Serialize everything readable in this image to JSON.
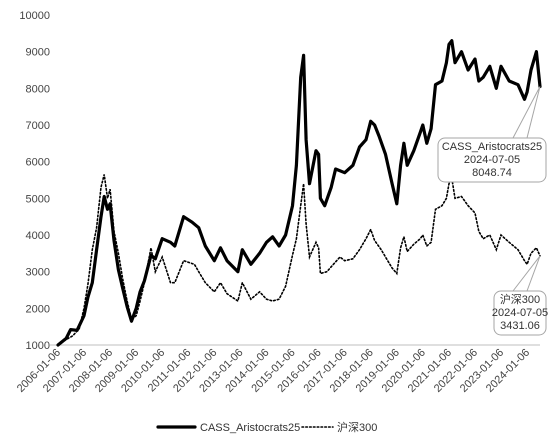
{
  "chart_data": {
    "type": "line",
    "y_ticks": [
      "1000",
      "2000",
      "3000",
      "4000",
      "5000",
      "6000",
      "7000",
      "8000",
      "9000",
      "10000"
    ],
    "ylim": [
      1000,
      10000
    ],
    "x_ticks": [
      "2006-01-06",
      "2007-01-06",
      "2008-01-06",
      "2009-01-06",
      "2010-01-06",
      "2011-01-06",
      "2012-01-06",
      "2013-01-06",
      "2014-01-06",
      "2015-01-06",
      "2016-01-06",
      "2017-01-06",
      "2018-01-06",
      "2019-01-06",
      "2020-01-06",
      "2021-01-06",
      "2022-01-06",
      "2023-01-06",
      "2024-01-06"
    ],
    "xlim": [
      "2006-01-06",
      "2024-07-05"
    ],
    "grid": false,
    "legend_position": "bottom",
    "series": [
      {
        "name": "CASS_Aristocrats25",
        "style": "solid-bold",
        "color": "#000000",
        "points": [
          [
            "2006-01-06",
            1000
          ],
          [
            "2006-05-01",
            1180
          ],
          [
            "2006-07-01",
            1420
          ],
          [
            "2006-10-01",
            1400
          ],
          [
            "2007-01-06",
            1800
          ],
          [
            "2007-03-01",
            2300
          ],
          [
            "2007-05-01",
            2700
          ],
          [
            "2007-07-01",
            3600
          ],
          [
            "2007-09-01",
            4500
          ],
          [
            "2007-10-15",
            5050
          ],
          [
            "2007-12-01",
            4700
          ],
          [
            "2008-01-06",
            4850
          ],
          [
            "2008-03-01",
            3850
          ],
          [
            "2008-05-01",
            3050
          ],
          [
            "2008-07-01",
            2550
          ],
          [
            "2008-09-01",
            2050
          ],
          [
            "2008-11-01",
            1650
          ],
          [
            "2009-01-06",
            2000
          ],
          [
            "2009-03-01",
            2450
          ],
          [
            "2009-05-01",
            2750
          ],
          [
            "2009-08-01",
            3450
          ],
          [
            "2009-10-01",
            3350
          ],
          [
            "2010-01-06",
            3900
          ],
          [
            "2010-05-01",
            3800
          ],
          [
            "2010-07-01",
            3700
          ],
          [
            "2010-11-01",
            4500
          ],
          [
            "2011-03-01",
            4350
          ],
          [
            "2011-06-01",
            4200
          ],
          [
            "2011-09-01",
            3700
          ],
          [
            "2012-01-06",
            3300
          ],
          [
            "2012-04-01",
            3650
          ],
          [
            "2012-07-01",
            3300
          ],
          [
            "2012-12-01",
            3000
          ],
          [
            "2013-02-01",
            3600
          ],
          [
            "2013-06-01",
            3200
          ],
          [
            "2013-10-01",
            3500
          ],
          [
            "2014-01-06",
            3800
          ],
          [
            "2014-04-01",
            3950
          ],
          [
            "2014-07-01",
            3700
          ],
          [
            "2014-10-01",
            4000
          ],
          [
            "2015-01-06",
            4800
          ],
          [
            "2015-03-01",
            5900
          ],
          [
            "2015-05-01",
            8300
          ],
          [
            "2015-06-10",
            8900
          ],
          [
            "2015-07-15",
            6600
          ],
          [
            "2015-09-01",
            5400
          ],
          [
            "2015-12-01",
            6300
          ],
          [
            "2016-01-06",
            6200
          ],
          [
            "2016-02-01",
            5000
          ],
          [
            "2016-04-01",
            4800
          ],
          [
            "2016-07-01",
            5300
          ],
          [
            "2016-09-01",
            5800
          ],
          [
            "2017-01-06",
            5700
          ],
          [
            "2017-05-01",
            5900
          ],
          [
            "2017-08-01",
            6400
          ],
          [
            "2017-11-01",
            6600
          ],
          [
            "2018-01-06",
            7100
          ],
          [
            "2018-03-01",
            7000
          ],
          [
            "2018-05-01",
            6700
          ],
          [
            "2018-08-01",
            6200
          ],
          [
            "2018-11-01",
            5400
          ],
          [
            "2019-01-06",
            4850
          ],
          [
            "2019-03-01",
            5900
          ],
          [
            "2019-04-15",
            6500
          ],
          [
            "2019-06-01",
            5900
          ],
          [
            "2019-09-01",
            6300
          ],
          [
            "2019-12-01",
            6800
          ],
          [
            "2020-01-06",
            7000
          ],
          [
            "2020-03-01",
            6500
          ],
          [
            "2020-05-01",
            6900
          ],
          [
            "2020-07-01",
            8100
          ],
          [
            "2020-10-01",
            8200
          ],
          [
            "2020-12-01",
            8700
          ],
          [
            "2021-01-06",
            9200
          ],
          [
            "2021-02-15",
            9300
          ],
          [
            "2021-04-01",
            8700
          ],
          [
            "2021-07-01",
            9000
          ],
          [
            "2021-10-01",
            8500
          ],
          [
            "2022-01-06",
            8800
          ],
          [
            "2022-03-01",
            8200
          ],
          [
            "2022-05-01",
            8300
          ],
          [
            "2022-08-01",
            8600
          ],
          [
            "2022-11-01",
            8000
          ],
          [
            "2023-01-06",
            8600
          ],
          [
            "2023-05-01",
            8200
          ],
          [
            "2023-09-01",
            8100
          ],
          [
            "2023-12-01",
            7700
          ],
          [
            "2024-01-06",
            7900
          ],
          [
            "2024-03-01",
            8500
          ],
          [
            "2024-05-15",
            9000
          ],
          [
            "2024-07-05",
            8048.74
          ]
        ]
      },
      {
        "name": "沪深300",
        "style": "dotted",
        "color": "#000000",
        "points": [
          [
            "2006-01-06",
            1000
          ],
          [
            "2006-05-01",
            1150
          ],
          [
            "2006-08-01",
            1250
          ],
          [
            "2006-11-01",
            1450
          ],
          [
            "2007-01-06",
            2000
          ],
          [
            "2007-03-01",
            2650
          ],
          [
            "2007-05-01",
            3600
          ],
          [
            "2007-07-01",
            4200
          ],
          [
            "2007-09-01",
            5300
          ],
          [
            "2007-10-15",
            5650
          ],
          [
            "2007-12-01",
            5000
          ],
          [
            "2008-01-06",
            5250
          ],
          [
            "2008-03-01",
            4100
          ],
          [
            "2008-05-01",
            3500
          ],
          [
            "2008-07-01",
            2800
          ],
          [
            "2008-09-01",
            2200
          ],
          [
            "2008-11-01",
            1700
          ],
          [
            "2009-01-06",
            1800
          ],
          [
            "2009-03-01",
            2200
          ],
          [
            "2009-05-01",
            2700
          ],
          [
            "2009-08-01",
            3650
          ],
          [
            "2009-10-01",
            3000
          ],
          [
            "2010-01-06",
            3400
          ],
          [
            "2010-05-01",
            2700
          ],
          [
            "2010-07-01",
            2700
          ],
          [
            "2010-11-01",
            3300
          ],
          [
            "2011-04-01",
            3200
          ],
          [
            "2011-06-01",
            3000
          ],
          [
            "2011-09-01",
            2700
          ],
          [
            "2012-01-06",
            2450
          ],
          [
            "2012-04-01",
            2700
          ],
          [
            "2012-07-01",
            2400
          ],
          [
            "2012-12-01",
            2200
          ],
          [
            "2013-02-01",
            2700
          ],
          [
            "2013-06-01",
            2250
          ],
          [
            "2013-10-01",
            2450
          ],
          [
            "2014-01-06",
            2250
          ],
          [
            "2014-04-01",
            2200
          ],
          [
            "2014-07-01",
            2250
          ],
          [
            "2014-10-01",
            2600
          ],
          [
            "2015-01-06",
            3450
          ],
          [
            "2015-03-01",
            3900
          ],
          [
            "2015-05-01",
            4800
          ],
          [
            "2015-06-10",
            5400
          ],
          [
            "2015-07-15",
            4300
          ],
          [
            "2015-09-01",
            3400
          ],
          [
            "2015-12-01",
            3800
          ],
          [
            "2016-01-06",
            3650
          ],
          [
            "2016-02-01",
            2950
          ],
          [
            "2016-05-01",
            3000
          ],
          [
            "2016-08-01",
            3200
          ],
          [
            "2016-11-01",
            3400
          ],
          [
            "2017-01-06",
            3300
          ],
          [
            "2017-05-01",
            3350
          ],
          [
            "2017-08-01",
            3600
          ],
          [
            "2017-11-01",
            3900
          ],
          [
            "2018-01-06",
            4150
          ],
          [
            "2018-03-01",
            3850
          ],
          [
            "2018-06-01",
            3600
          ],
          [
            "2018-09-01",
            3300
          ],
          [
            "2018-11-01",
            3100
          ],
          [
            "2019-01-06",
            2950
          ],
          [
            "2019-03-01",
            3650
          ],
          [
            "2019-04-15",
            3950
          ],
          [
            "2019-06-01",
            3550
          ],
          [
            "2019-09-01",
            3750
          ],
          [
            "2019-12-01",
            3900
          ],
          [
            "2020-01-06",
            4000
          ],
          [
            "2020-03-01",
            3700
          ],
          [
            "2020-05-01",
            3800
          ],
          [
            "2020-07-01",
            4700
          ],
          [
            "2020-10-01",
            4800
          ],
          [
            "2020-12-01",
            5000
          ],
          [
            "2021-01-06",
            5400
          ],
          [
            "2021-02-15",
            5550
          ],
          [
            "2021-04-01",
            5000
          ],
          [
            "2021-07-01",
            5050
          ],
          [
            "2021-10-01",
            4800
          ],
          [
            "2022-01-06",
            4600
          ],
          [
            "2022-03-01",
            4100
          ],
          [
            "2022-05-01",
            3900
          ],
          [
            "2022-08-01",
            4000
          ],
          [
            "2022-11-01",
            3600
          ],
          [
            "2023-01-06",
            4000
          ],
          [
            "2023-05-01",
            3800
          ],
          [
            "2023-09-01",
            3600
          ],
          [
            "2023-12-01",
            3300
          ],
          [
            "2024-01-06",
            3200
          ],
          [
            "2024-03-01",
            3500
          ],
          [
            "2024-05-15",
            3650
          ],
          [
            "2024-07-05",
            3431.06
          ]
        ]
      }
    ],
    "annotations": [
      {
        "series": "CASS_Aristocrats25",
        "lines": [
          "CASS_Aristocrats25",
          "2024-07-05",
          "8048.74"
        ],
        "x": "2024-07-05",
        "y": 8048.74
      },
      {
        "series": "沪深300",
        "lines": [
          "沪深300",
          "2024-07-05",
          "3431.06"
        ],
        "x": "2024-07-05",
        "y": 3431.06
      }
    ]
  }
}
